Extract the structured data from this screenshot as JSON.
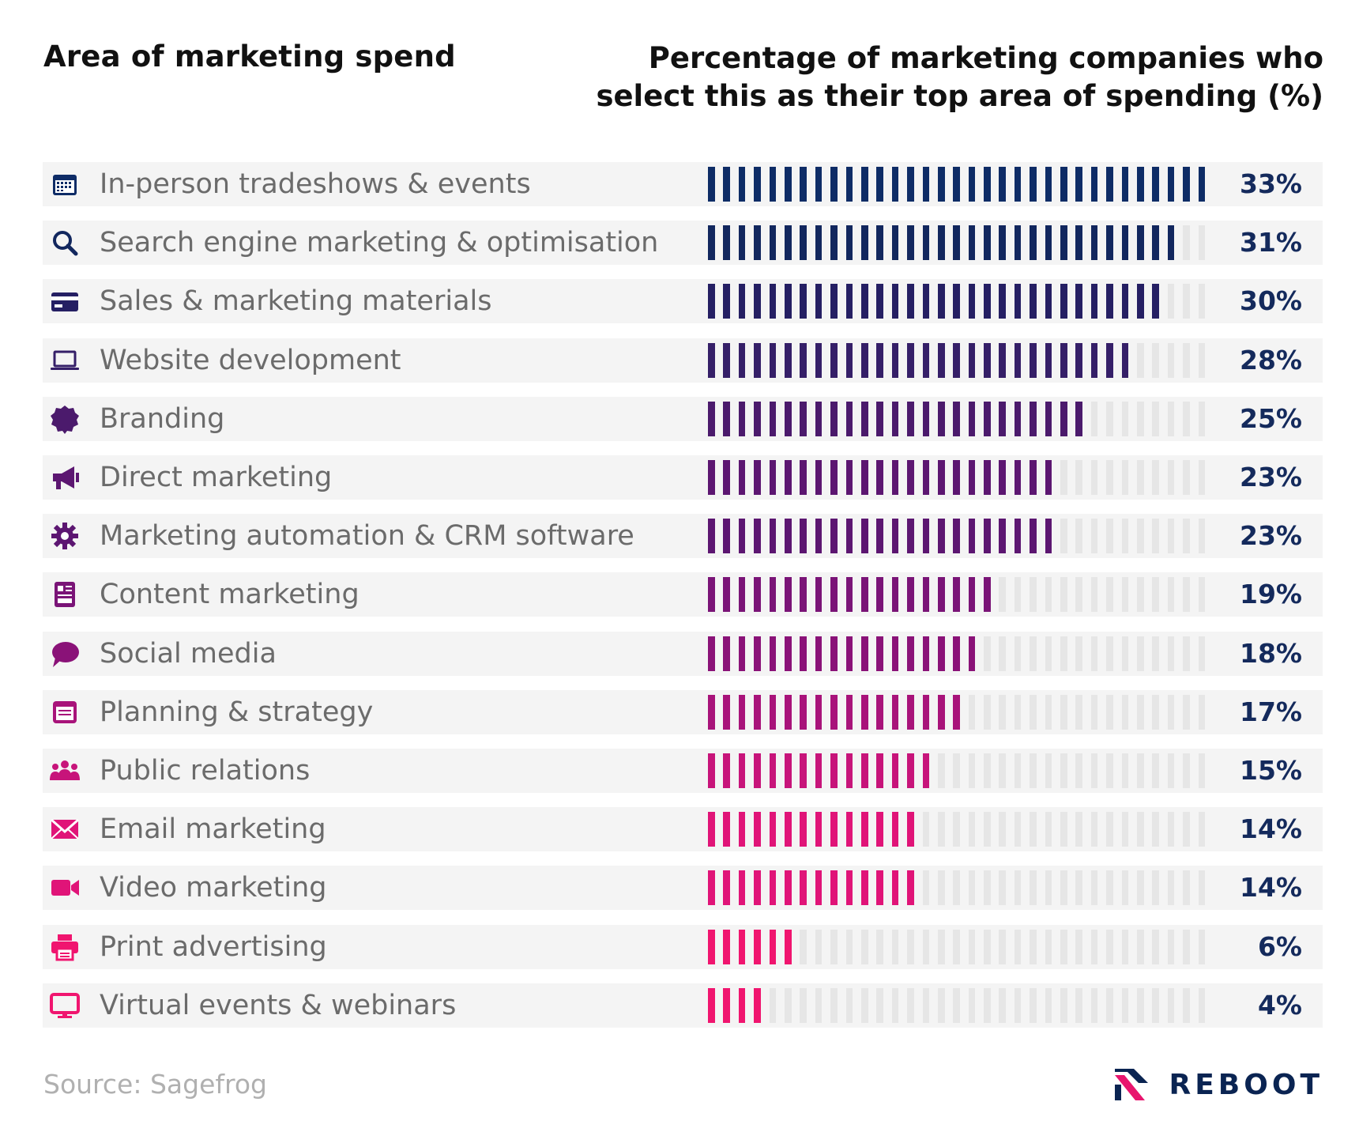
{
  "header": {
    "left": "Area of marketing spend",
    "right": "Percentage of marketing companies who select this as their top area of spending (%)"
  },
  "chart_data": {
    "type": "bar",
    "orientation": "horizontal",
    "xlim": [
      0,
      33
    ],
    "categories": [
      "In-person tradeshows & events",
      "Search engine marketing & optimisation",
      "Sales & marketing materials",
      "Website development",
      "Branding",
      "Direct marketing",
      "Marketing automation & CRM software",
      "Content marketing",
      "Social media",
      "Planning & strategy",
      "Public relations",
      "Email marketing",
      "Video marketing",
      "Print advertising",
      "Virtual events & webinars"
    ],
    "values": [
      33,
      31,
      30,
      28,
      25,
      23,
      23,
      19,
      18,
      17,
      15,
      14,
      14,
      6,
      4
    ],
    "value_labels": [
      "33%",
      "31%",
      "30%",
      "28%",
      "25%",
      "23%",
      "23%",
      "19%",
      "18%",
      "17%",
      "15%",
      "14%",
      "14%",
      "6%",
      "4%"
    ],
    "icons": [
      "calendar-icon",
      "search-icon",
      "credit-card-icon",
      "laptop-icon",
      "badge-icon",
      "megaphone-icon",
      "gear-icon",
      "content-icon",
      "chat-bubble-icon",
      "notepad-icon",
      "people-icon",
      "envelope-icon",
      "video-camera-icon",
      "printer-icon",
      "monitor-icon"
    ],
    "colors": [
      "#0e2c66",
      "#12275e",
      "#251f63",
      "#351f68",
      "#4b1a6c",
      "#5c1671",
      "#5c1671",
      "#7a1477",
      "#8a1278",
      "#a8137a",
      "#c7147a",
      "#e01478",
      "#e01478",
      "#f0156f",
      "#f0156f"
    ],
    "empty_color": "#e6e6e6"
  },
  "footer": {
    "source": "Source: Sagefrog",
    "brand": "REBOOT"
  }
}
